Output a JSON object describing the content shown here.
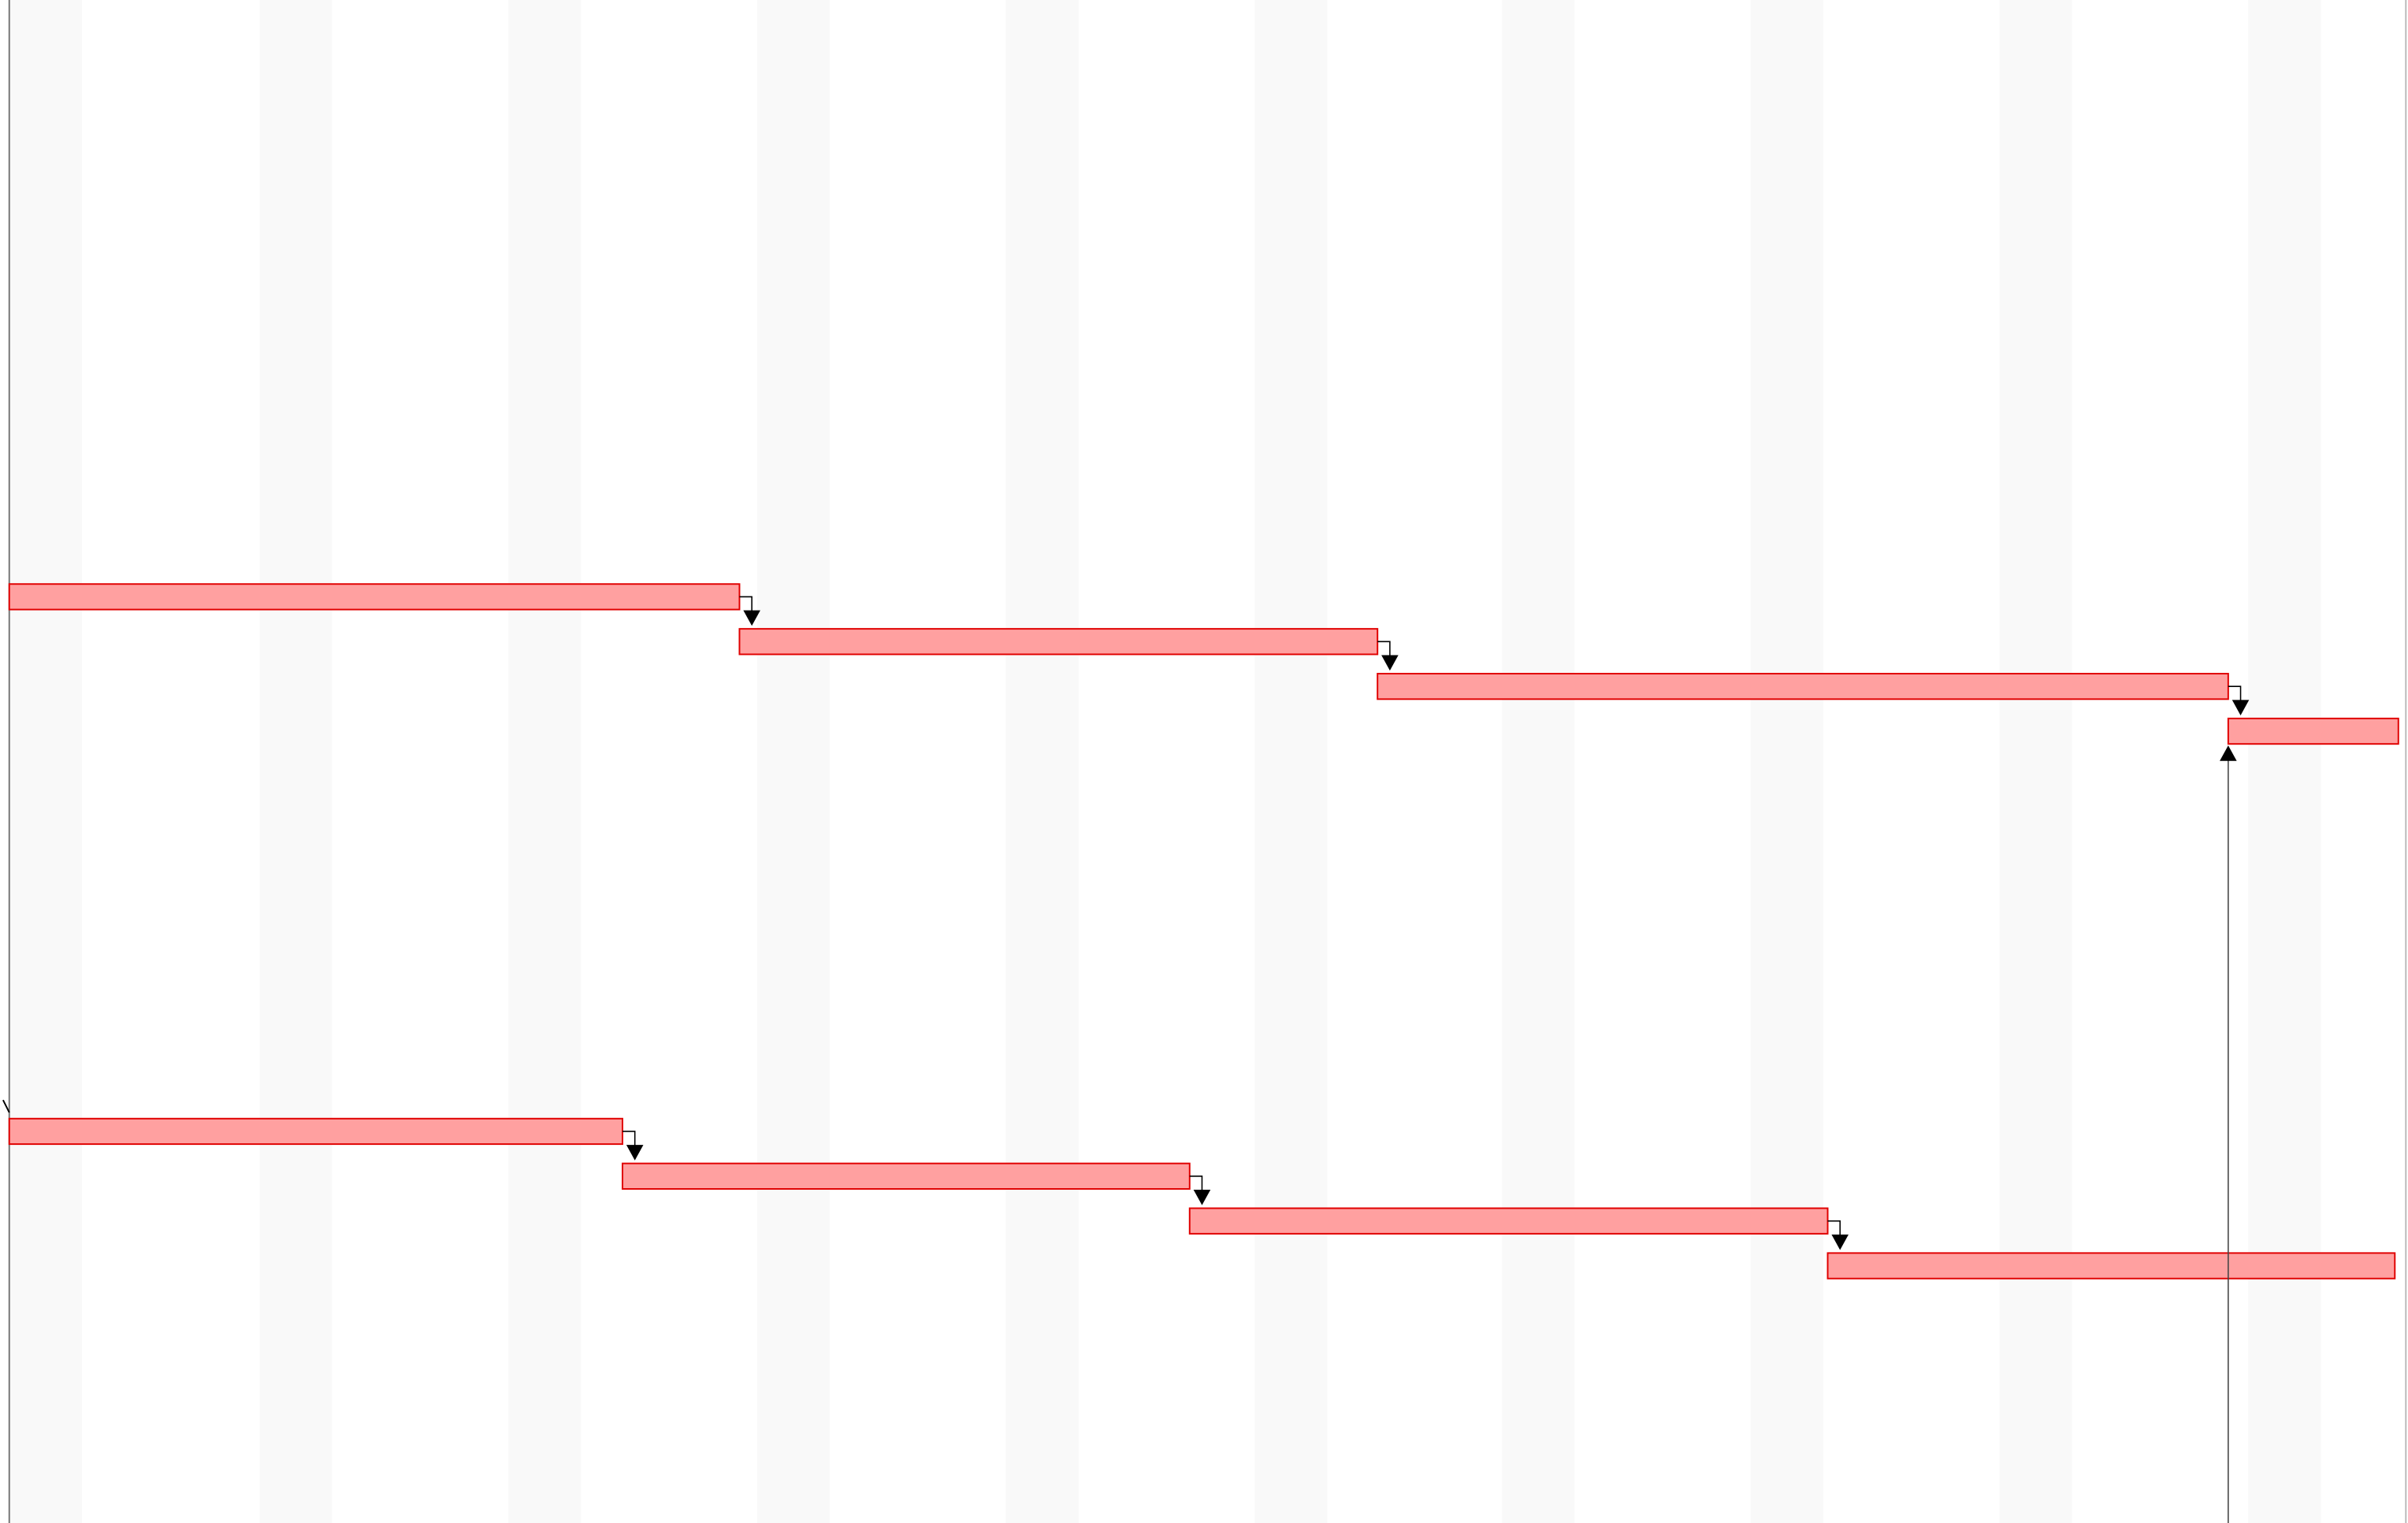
{
  "view": {
    "type": "gantt-timeline",
    "weekend_shading_color": "#f9f9f9",
    "background_color": "#ffffff",
    "frame_color": "#777777"
  },
  "task_style": {
    "fill_color": "#ffa0a0",
    "border_color": "#e00000",
    "dependency_color": "#000000"
  },
  "task_groups": [
    {
      "name": "",
      "tasks": [
        {
          "name": "",
          "start_day": 0,
          "duration_days": 20.6
        },
        {
          "name": "",
          "start_day": 20.6,
          "duration_days": 18.0
        },
        {
          "name": "",
          "start_day": 38.6,
          "duration_days": 24.0
        },
        {
          "name": "",
          "start_day": 62.6,
          "duration_days": 4.8
        }
      ]
    },
    {
      "name": "",
      "tasks": [
        {
          "name": "",
          "start_day": 0,
          "duration_days": 17.3
        },
        {
          "name": "",
          "start_day": 17.3,
          "duration_days": 16.0
        },
        {
          "name": "",
          "start_day": 33.3,
          "duration_days": 18.0
        },
        {
          "name": "",
          "start_day": 51.3,
          "duration_days": 16.0
        }
      ]
    }
  ],
  "cross_dependency": {
    "from_group": 1,
    "from_task": -1,
    "to_group": 0,
    "to_task": 3
  }
}
